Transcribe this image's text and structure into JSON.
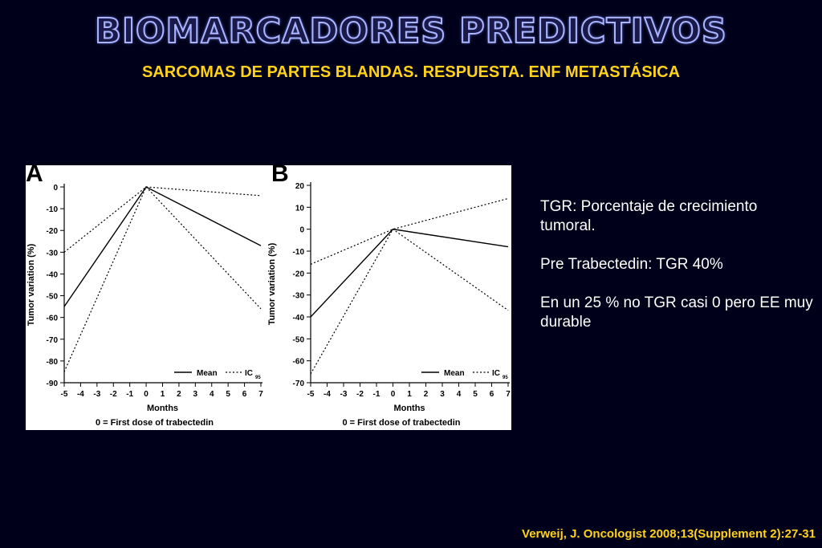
{
  "slide": {
    "title": "BIOMARCADORES PREDICTIVOS",
    "subtitle": "SARCOMAS DE PARTES BLANDAS. RESPUESTA. ENF METASTÁSICA",
    "notes": [
      "TGR: Porcentaje de crecimiento tumoral.",
      "Pre Trabectedin: TGR 40%",
      "En un 25 % no TGR casi 0 pero EE muy durable"
    ],
    "citation": "Verweij, J. Oncologist 2008;13(Supplement 2):27-31"
  },
  "colors": {
    "background": "#00001a",
    "subtitle": "#ffd21a",
    "title_outline": "#aab4ff"
  },
  "chart_data": [
    {
      "type": "line",
      "panel": "A",
      "xlabel": "Months",
      "ylabel": "Tumor variation (%)",
      "footnote": "0 = First dose of trabectedin",
      "x_ticks": [
        -5,
        -4,
        -3,
        -2,
        -1,
        0,
        1,
        2,
        3,
        4,
        5,
        6,
        7
      ],
      "y_ticks": [
        0,
        -10,
        -20,
        -30,
        -40,
        -50,
        -60,
        -70,
        -80,
        -90
      ],
      "xlim": [
        -5,
        7
      ],
      "ylim": [
        -90,
        0
      ],
      "legend": {
        "mean": "Mean",
        "ic": "IC",
        "ic_sub": "95"
      },
      "series": [
        {
          "name": "Mean",
          "style": "solid",
          "x": [
            -5,
            0,
            7
          ],
          "y": [
            -55,
            0,
            -27
          ]
        },
        {
          "name": "IC95",
          "style": "dotted",
          "x": [
            -5,
            0,
            7
          ],
          "y": [
            -30,
            0,
            -4
          ]
        },
        {
          "name": "IC95",
          "style": "dotted",
          "x": [
            -5,
            0,
            7
          ],
          "y": [
            -85,
            0,
            -56
          ]
        }
      ]
    },
    {
      "type": "line",
      "panel": "B",
      "xlabel": "Months",
      "ylabel": "Tumor variation (%)",
      "footnote": "0 = First dose of trabectedin",
      "x_ticks": [
        -5,
        -4,
        -3,
        -2,
        -1,
        0,
        1,
        2,
        3,
        4,
        5,
        6,
        7
      ],
      "y_ticks": [
        20,
        10,
        0,
        -10,
        -20,
        -30,
        -40,
        -50,
        -60,
        -70
      ],
      "xlim": [
        -5,
        7
      ],
      "ylim": [
        -70,
        20
      ],
      "legend": {
        "mean": "Mean",
        "ic": "IC",
        "ic_sub": "95"
      },
      "series": [
        {
          "name": "Mean",
          "style": "solid",
          "x": [
            -5,
            0,
            7
          ],
          "y": [
            -40,
            0,
            -8
          ]
        },
        {
          "name": "IC95",
          "style": "dotted",
          "x": [
            -5,
            0,
            7
          ],
          "y": [
            -16,
            0,
            14
          ]
        },
        {
          "name": "IC95",
          "style": "dotted",
          "x": [
            -5,
            0,
            7
          ],
          "y": [
            -66,
            0,
            -37
          ]
        }
      ]
    }
  ]
}
